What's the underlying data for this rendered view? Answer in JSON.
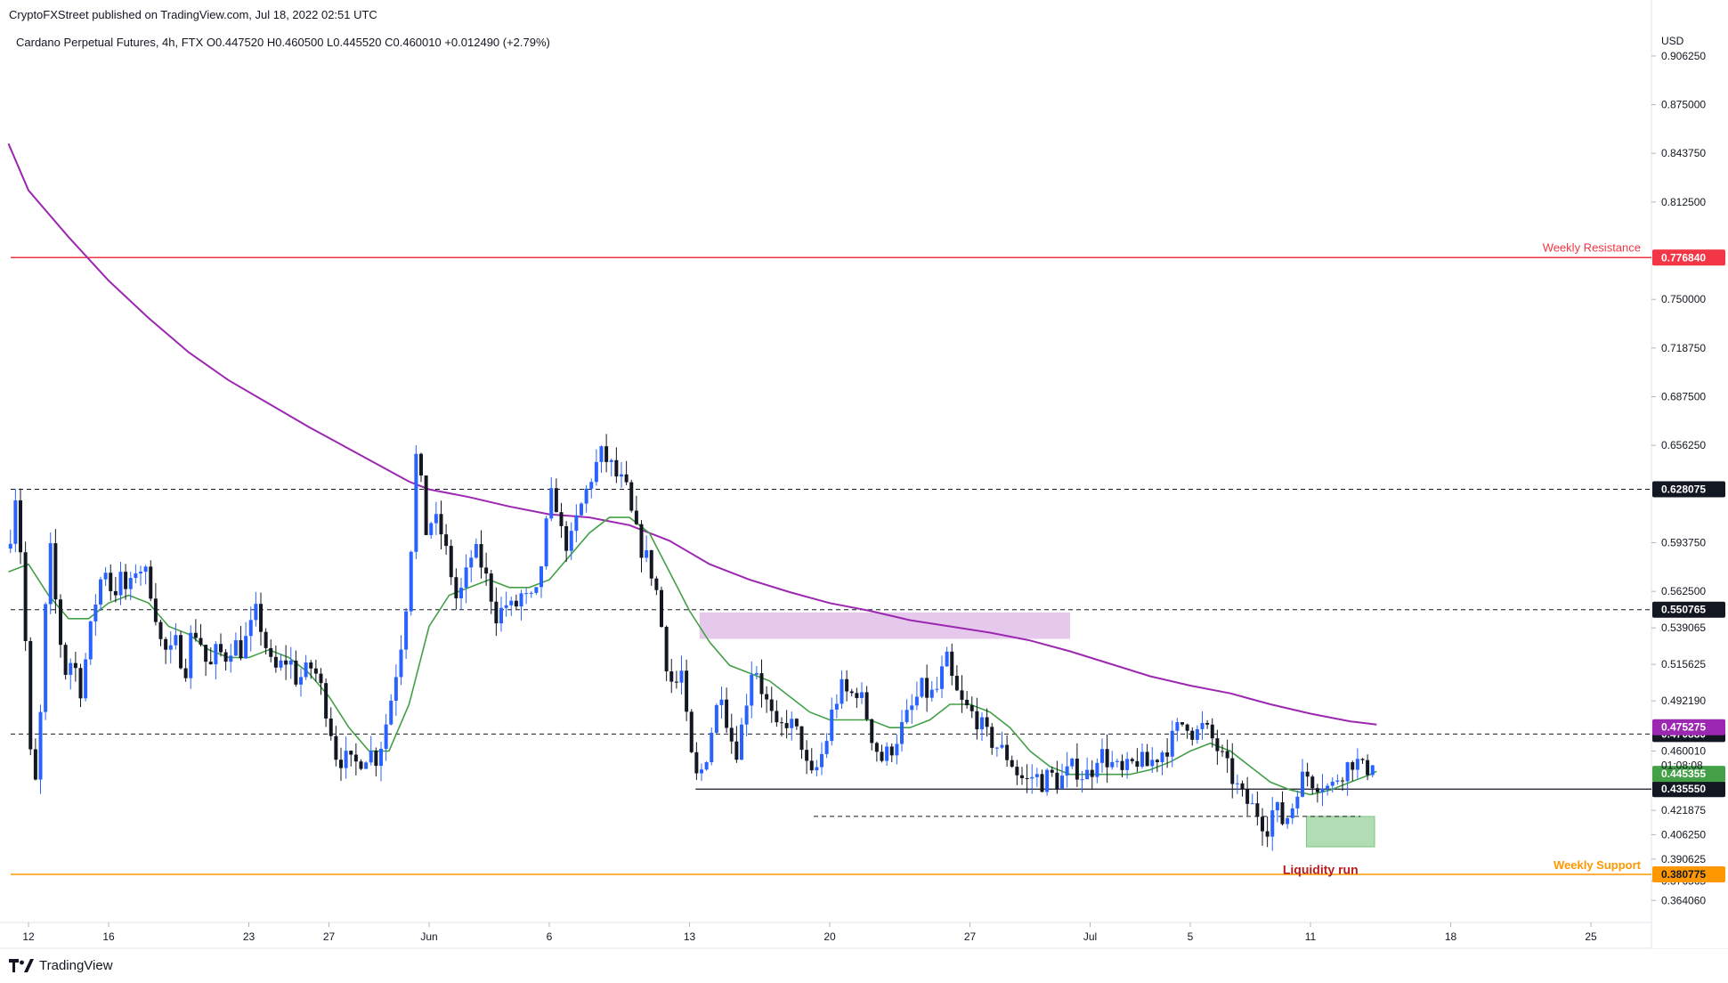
{
  "publisher": "CryptoFXStreet published on TradingView.com, Jul 18, 2022 02:51 UTC",
  "symbol_line": "Cardano Perpetual Futures, 4h, FTX  O0.447520  H0.460500  L0.445520  C0.460010  +0.012490 (+2.79%)",
  "branding": "TradingView",
  "colors": {
    "up": "#2962ff",
    "down": "#131722",
    "ema_fast": "#43a047",
    "ema_slow": "#9c27b0",
    "resistance": "#f23645",
    "support": "#ff9800",
    "zone_purple": "#e1bee7",
    "zone_green": "#a5d6a7",
    "label_dark": "#131722"
  },
  "chart_data": {
    "type": "candlestick",
    "currency": "USD",
    "ylim": [
      0.3505,
      0.9262
    ],
    "y_ticks": [
      "0.906250",
      "0.875000",
      "0.843750",
      "0.812500",
      "0.750000",
      "0.718750",
      "0.687500",
      "0.656250",
      "0.593750",
      "0.562500",
      "0.539065",
      "0.515625",
      "0.492190",
      "0.460010",
      "0.421875",
      "0.406250",
      "0.390625",
      "0.376565",
      "0.364060"
    ],
    "x_ticks": [
      "12",
      "16",
      "23",
      "27",
      "Jun",
      "6",
      "13",
      "20",
      "27",
      "Jul",
      "5",
      "11",
      "18",
      "25"
    ],
    "x_tick_pos": [
      0,
      4,
      11,
      15,
      20,
      26,
      33,
      40,
      47,
      53,
      58,
      64,
      71,
      78
    ],
    "countdown": "01:08:08",
    "levels": [
      {
        "value": 0.77684,
        "label": "0.776840",
        "name": "Weekly Resistance",
        "style": "resistance"
      },
      {
        "value": 0.628075,
        "label": "0.628075",
        "name": "",
        "style": "dashed"
      },
      {
        "value": 0.550765,
        "label": "0.550765",
        "name": "",
        "style": "dashed"
      },
      {
        "value": 0.47088,
        "label": "0.470880",
        "name": "",
        "style": "dashed"
      },
      {
        "value": 0.43555,
        "label": "0.435550",
        "name": "",
        "style": "solid-partial"
      },
      {
        "value": 0.418,
        "label": "",
        "name": "",
        "style": "dashed-partial"
      },
      {
        "value": 0.380775,
        "label": "0.380775",
        "name": "Weekly Support",
        "style": "support"
      }
    ],
    "price_badges": [
      {
        "value": 0.475275,
        "label": "0.475275",
        "color": "#9c27b0"
      },
      {
        "value": 0.445355,
        "label": "0.445355",
        "color": "#43a047"
      }
    ],
    "annotations": [
      {
        "text": "Liquidity run",
        "day": 64.5,
        "value": 0.3835
      }
    ],
    "zones": [
      {
        "day_start": 33.5,
        "day_end": 52,
        "low": 0.532,
        "high": 0.549,
        "color": "purple"
      },
      {
        "day_start": 63.8,
        "day_end": 67.2,
        "low": 0.3985,
        "high": 0.418,
        "color": "green"
      }
    ],
    "close_path": [
      [
        -1,
        0.59
      ],
      [
        -0.6,
        0.63
      ],
      [
        -0.2,
        0.55
      ],
      [
        0,
        0.47
      ],
      [
        0.3,
        0.43
      ],
      [
        0.7,
        0.5
      ],
      [
        1,
        0.6
      ],
      [
        1.4,
        0.55
      ],
      [
        1.8,
        0.51
      ],
      [
        2.2,
        0.52
      ],
      [
        2.6,
        0.5
      ],
      [
        3,
        0.53
      ],
      [
        3.4,
        0.56
      ],
      [
        3.8,
        0.58
      ],
      [
        4.2,
        0.56
      ],
      [
        4.6,
        0.57
      ],
      [
        5,
        0.56
      ],
      [
        5.4,
        0.58
      ],
      [
        5.8,
        0.575
      ],
      [
        6.2,
        0.56
      ],
      [
        6.6,
        0.53
      ],
      [
        7,
        0.52
      ],
      [
        7.4,
        0.53
      ],
      [
        7.8,
        0.51
      ],
      [
        8.2,
        0.54
      ],
      [
        8.6,
        0.53
      ],
      [
        9,
        0.51
      ],
      [
        9.4,
        0.525
      ],
      [
        9.8,
        0.52
      ],
      [
        10.2,
        0.53
      ],
      [
        10.6,
        0.525
      ],
      [
        11,
        0.535
      ],
      [
        11.4,
        0.55
      ],
      [
        11.8,
        0.53
      ],
      [
        12.2,
        0.51
      ],
      [
        12.6,
        0.515
      ],
      [
        13,
        0.52
      ],
      [
        13.4,
        0.505
      ],
      [
        13.8,
        0.51
      ],
      [
        14.2,
        0.515
      ],
      [
        14.6,
        0.5
      ],
      [
        15,
        0.48
      ],
      [
        15.4,
        0.455
      ],
      [
        15.8,
        0.455
      ],
      [
        16.2,
        0.45
      ],
      [
        16.6,
        0.455
      ],
      [
        17,
        0.46
      ],
      [
        17.4,
        0.455
      ],
      [
        17.8,
        0.475
      ],
      [
        18.2,
        0.5
      ],
      [
        18.6,
        0.53
      ],
      [
        19,
        0.57
      ],
      [
        19.4,
        0.66
      ],
      [
        19.8,
        0.6
      ],
      [
        20.2,
        0.61
      ],
      [
        20.6,
        0.6
      ],
      [
        21,
        0.58
      ],
      [
        21.4,
        0.555
      ],
      [
        21.8,
        0.57
      ],
      [
        22.2,
        0.59
      ],
      [
        22.6,
        0.58
      ],
      [
        23,
        0.565
      ],
      [
        23.4,
        0.545
      ],
      [
        23.8,
        0.555
      ],
      [
        24.2,
        0.55
      ],
      [
        24.6,
        0.56
      ],
      [
        25,
        0.555
      ],
      [
        25.4,
        0.56
      ],
      [
        25.8,
        0.6
      ],
      [
        26.2,
        0.63
      ],
      [
        26.6,
        0.6
      ],
      [
        27,
        0.59
      ],
      [
        27.4,
        0.61
      ],
      [
        27.8,
        0.625
      ],
      [
        28.2,
        0.64
      ],
      [
        28.6,
        0.65
      ],
      [
        29,
        0.645
      ],
      [
        29.4,
        0.635
      ],
      [
        29.8,
        0.63
      ],
      [
        30.2,
        0.605
      ],
      [
        30.6,
        0.59
      ],
      [
        31,
        0.58
      ],
      [
        31.4,
        0.56
      ],
      [
        31.8,
        0.52
      ],
      [
        32.2,
        0.5
      ],
      [
        32.6,
        0.51
      ],
      [
        33,
        0.46
      ],
      [
        33.4,
        0.44
      ],
      [
        33.8,
        0.455
      ],
      [
        34.2,
        0.48
      ],
      [
        34.6,
        0.5
      ],
      [
        35,
        0.47
      ],
      [
        35.4,
        0.46
      ],
      [
        35.8,
        0.49
      ],
      [
        36.2,
        0.52
      ],
      [
        36.6,
        0.5
      ],
      [
        37,
        0.485
      ],
      [
        37.4,
        0.47
      ],
      [
        37.8,
        0.48
      ],
      [
        38.2,
        0.475
      ],
      [
        38.6,
        0.465
      ],
      [
        39,
        0.44
      ],
      [
        39.4,
        0.45
      ],
      [
        39.8,
        0.465
      ],
      [
        40.2,
        0.49
      ],
      [
        40.6,
        0.5
      ],
      [
        41,
        0.495
      ],
      [
        41.4,
        0.5
      ],
      [
        41.8,
        0.485
      ],
      [
        42.2,
        0.465
      ],
      [
        42.6,
        0.455
      ],
      [
        43,
        0.46
      ],
      [
        43.4,
        0.47
      ],
      [
        43.8,
        0.48
      ],
      [
        44.2,
        0.49
      ],
      [
        44.6,
        0.5
      ],
      [
        45,
        0.495
      ],
      [
        45.4,
        0.5
      ],
      [
        45.8,
        0.52
      ],
      [
        46.2,
        0.5
      ],
      [
        46.6,
        0.49
      ],
      [
        47,
        0.485
      ],
      [
        47.4,
        0.48
      ],
      [
        47.8,
        0.47
      ],
      [
        48.2,
        0.465
      ],
      [
        48.6,
        0.46
      ],
      [
        49,
        0.455
      ],
      [
        49.4,
        0.445
      ],
      [
        49.8,
        0.44
      ],
      [
        50.2,
        0.445
      ],
      [
        50.6,
        0.44
      ],
      [
        51,
        0.445
      ],
      [
        51.4,
        0.44
      ],
      [
        51.8,
        0.445
      ],
      [
        52.2,
        0.45
      ],
      [
        52.6,
        0.445
      ],
      [
        53,
        0.445
      ],
      [
        53.4,
        0.46
      ],
      [
        53.8,
        0.455
      ],
      [
        54.2,
        0.45
      ],
      [
        54.6,
        0.445
      ],
      [
        55,
        0.45
      ],
      [
        55.4,
        0.455
      ],
      [
        55.8,
        0.45
      ],
      [
        56.2,
        0.455
      ],
      [
        56.6,
        0.46
      ],
      [
        57,
        0.465
      ],
      [
        57.4,
        0.475
      ],
      [
        57.8,
        0.48
      ],
      [
        58.2,
        0.47
      ],
      [
        58.6,
        0.475
      ],
      [
        59,
        0.47
      ],
      [
        59.4,
        0.46
      ],
      [
        59.8,
        0.45
      ],
      [
        60.2,
        0.44
      ],
      [
        60.6,
        0.43
      ],
      [
        61,
        0.425
      ],
      [
        61.4,
        0.42
      ],
      [
        61.8,
        0.41
      ],
      [
        62.2,
        0.425
      ],
      [
        62.6,
        0.415
      ],
      [
        63,
        0.42
      ],
      [
        63.4,
        0.44
      ],
      [
        63.8,
        0.445
      ],
      [
        64.2,
        0.44
      ],
      [
        64.6,
        0.44
      ],
      [
        65,
        0.435
      ],
      [
        65.4,
        0.445
      ],
      [
        65.8,
        0.45
      ],
      [
        66.2,
        0.455
      ],
      [
        66.6,
        0.448
      ],
      [
        67,
        0.45
      ],
      [
        67.2,
        0.46
      ]
    ],
    "ema_fast_path": [
      [
        -1,
        0.575
      ],
      [
        0,
        0.58
      ],
      [
        1,
        0.56
      ],
      [
        2,
        0.545
      ],
      [
        3,
        0.545
      ],
      [
        4,
        0.555
      ],
      [
        5,
        0.56
      ],
      [
        6,
        0.555
      ],
      [
        7,
        0.54
      ],
      [
        8,
        0.535
      ],
      [
        9,
        0.525
      ],
      [
        10,
        0.52
      ],
      [
        11,
        0.52
      ],
      [
        12,
        0.525
      ],
      [
        13,
        0.52
      ],
      [
        14,
        0.51
      ],
      [
        15,
        0.495
      ],
      [
        16,
        0.475
      ],
      [
        17,
        0.46
      ],
      [
        18,
        0.46
      ],
      [
        19,
        0.49
      ],
      [
        20,
        0.54
      ],
      [
        21,
        0.56
      ],
      [
        22,
        0.565
      ],
      [
        23,
        0.57
      ],
      [
        24,
        0.565
      ],
      [
        25,
        0.565
      ],
      [
        26,
        0.57
      ],
      [
        27,
        0.585
      ],
      [
        28,
        0.6
      ],
      [
        29,
        0.61
      ],
      [
        30,
        0.61
      ],
      [
        31,
        0.6
      ],
      [
        32,
        0.575
      ],
      [
        33,
        0.55
      ],
      [
        34,
        0.53
      ],
      [
        35,
        0.515
      ],
      [
        36,
        0.51
      ],
      [
        37,
        0.505
      ],
      [
        38,
        0.495
      ],
      [
        39,
        0.485
      ],
      [
        40,
        0.48
      ],
      [
        41,
        0.48
      ],
      [
        42,
        0.48
      ],
      [
        43,
        0.475
      ],
      [
        44,
        0.475
      ],
      [
        45,
        0.48
      ],
      [
        46,
        0.49
      ],
      [
        47,
        0.49
      ],
      [
        48,
        0.485
      ],
      [
        49,
        0.475
      ],
      [
        50,
        0.46
      ],
      [
        51,
        0.45
      ],
      [
        52,
        0.445
      ],
      [
        53,
        0.445
      ],
      [
        54,
        0.445
      ],
      [
        55,
        0.445
      ],
      [
        56,
        0.448
      ],
      [
        57,
        0.453
      ],
      [
        58,
        0.46
      ],
      [
        59,
        0.465
      ],
      [
        60,
        0.46
      ],
      [
        61,
        0.45
      ],
      [
        62,
        0.44
      ],
      [
        63,
        0.435
      ],
      [
        64,
        0.432
      ],
      [
        65,
        0.435
      ],
      [
        66,
        0.44
      ],
      [
        67,
        0.445
      ],
      [
        67.3,
        0.447
      ]
    ],
    "ema_slow_path": [
      [
        -1,
        0.85
      ],
      [
        0,
        0.82
      ],
      [
        2,
        0.79
      ],
      [
        4,
        0.762
      ],
      [
        6,
        0.738
      ],
      [
        8,
        0.716
      ],
      [
        10,
        0.698
      ],
      [
        12,
        0.683
      ],
      [
        14,
        0.668
      ],
      [
        16,
        0.654
      ],
      [
        18,
        0.64
      ],
      [
        19,
        0.633
      ],
      [
        20,
        0.628
      ],
      [
        22,
        0.623
      ],
      [
        24,
        0.617
      ],
      [
        26,
        0.612
      ],
      [
        28,
        0.61
      ],
      [
        30,
        0.605
      ],
      [
        32,
        0.595
      ],
      [
        34,
        0.58
      ],
      [
        36,
        0.57
      ],
      [
        38,
        0.562
      ],
      [
        40,
        0.555
      ],
      [
        42,
        0.55
      ],
      [
        44,
        0.544
      ],
      [
        46,
        0.54
      ],
      [
        48,
        0.536
      ],
      [
        50,
        0.531
      ],
      [
        52,
        0.524
      ],
      [
        54,
        0.516
      ],
      [
        56,
        0.508
      ],
      [
        58,
        0.502
      ],
      [
        60,
        0.497
      ],
      [
        62,
        0.49
      ],
      [
        64,
        0.484
      ],
      [
        66,
        0.479
      ],
      [
        67.3,
        0.477
      ]
    ]
  }
}
